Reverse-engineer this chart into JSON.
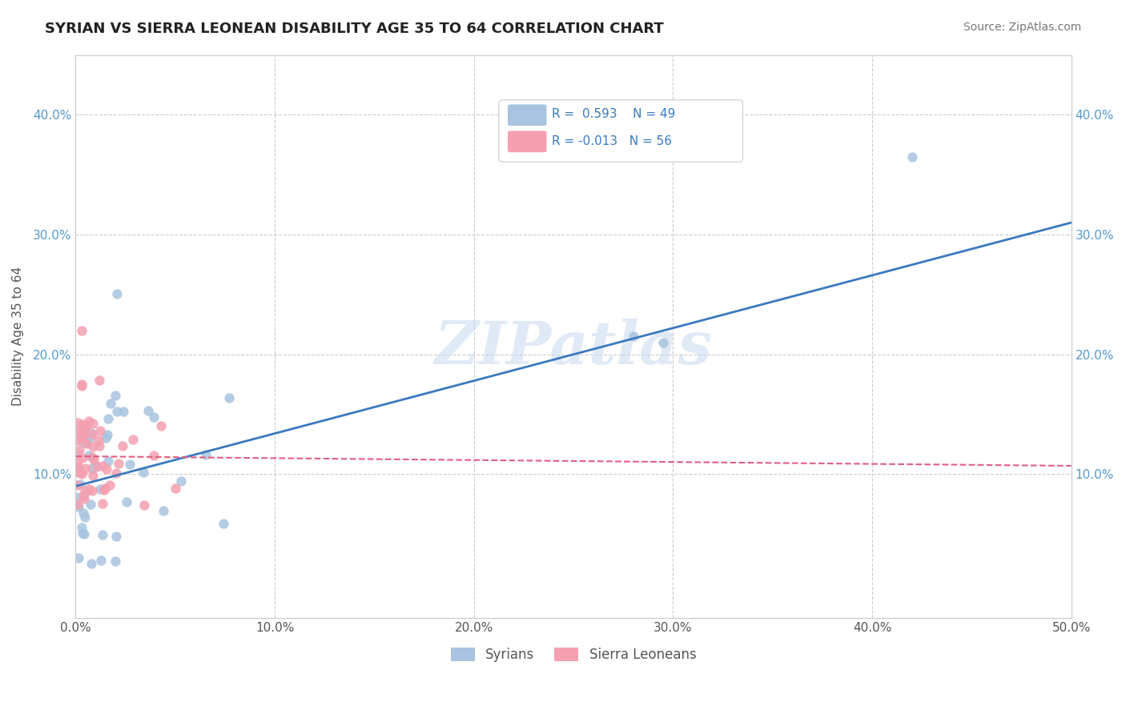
{
  "title": "SYRIAN VS SIERRA LEONEAN DISABILITY AGE 35 TO 64 CORRELATION CHART",
  "source": "Source: ZipAtlas.com",
  "ylabel": "Disability Age 35 to 64",
  "xlim": [
    0.0,
    0.5
  ],
  "ylim": [
    -0.02,
    0.45
  ],
  "syrian_R": 0.593,
  "syrian_N": 49,
  "sierraleone_R": -0.013,
  "sierraleone_N": 56,
  "syrian_color": "#a8c4e0",
  "sierraleone_color": "#f4a0b0",
  "syrian_line_color": "#3a7abf",
  "sierraleone_line_color": "#e06080",
  "watermark": "ZIPatlas",
  "grid_color": "#cccccc",
  "tick_color": "#5599cc",
  "label_color": "#555555",
  "title_color": "#222222",
  "source_color": "#777777",
  "syrian_line_start_y": 0.09,
  "syrian_line_slope": 0.44,
  "sl_line_start_y": 0.115,
  "sl_line_slope": -0.016
}
